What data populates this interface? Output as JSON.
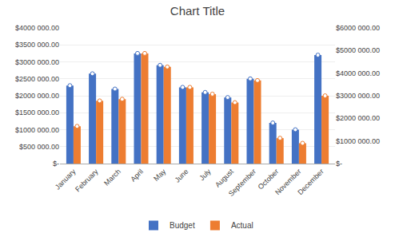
{
  "chart_data": {
    "type": "bar",
    "title": "Chart Title",
    "categories": [
      "January",
      "February",
      "March",
      "April",
      "May",
      "June",
      "July",
      "August",
      "September",
      "October",
      "November",
      "December"
    ],
    "series": [
      {
        "name": "Budget",
        "color": "#4472C4",
        "marker": "circle",
        "values": [
          2300000,
          2650000,
          2200000,
          3250000,
          2900000,
          2250000,
          2100000,
          1950000,
          2500000,
          1200000,
          1000000,
          3200000
        ]
      },
      {
        "name": "Actual",
        "color": "#ED7D31",
        "marker": "circle",
        "values": [
          1100000,
          1850000,
          1900000,
          3250000,
          2850000,
          2250000,
          2050000,
          1800000,
          2450000,
          750000,
          600000,
          2000000
        ]
      }
    ],
    "ylim": [
      0,
      4000000
    ],
    "yticks": [
      {
        "value": 0,
        "label": "$-"
      },
      {
        "value": 500000,
        "label": "$500 000.00"
      },
      {
        "value": 1000000,
        "label": "$1000 000.00"
      },
      {
        "value": 1500000,
        "label": "$1500 000.00"
      },
      {
        "value": 2000000,
        "label": "$2000 000.00"
      },
      {
        "value": 2500000,
        "label": "$2500 000.00"
      },
      {
        "value": 3000000,
        "label": "$3000 000.00"
      },
      {
        "value": 3500000,
        "label": "$3500 000.00"
      },
      {
        "value": 4000000,
        "label": "$4000 000.00"
      }
    ],
    "y2lim": [
      0,
      6000000
    ],
    "y2ticks": [
      {
        "value": 0,
        "label": "$-"
      },
      {
        "value": 1000000,
        "label": "$1000 000.00"
      },
      {
        "value": 2000000,
        "label": "$2000 000.00"
      },
      {
        "value": 3000000,
        "label": "$3000 000.00"
      },
      {
        "value": 4000000,
        "label": "$4000 000.00"
      },
      {
        "value": 5000000,
        "label": "$5000 000.00"
      },
      {
        "value": 6000000,
        "label": "$6000 000.00"
      }
    ],
    "grid": true,
    "legend": "bottom"
  }
}
